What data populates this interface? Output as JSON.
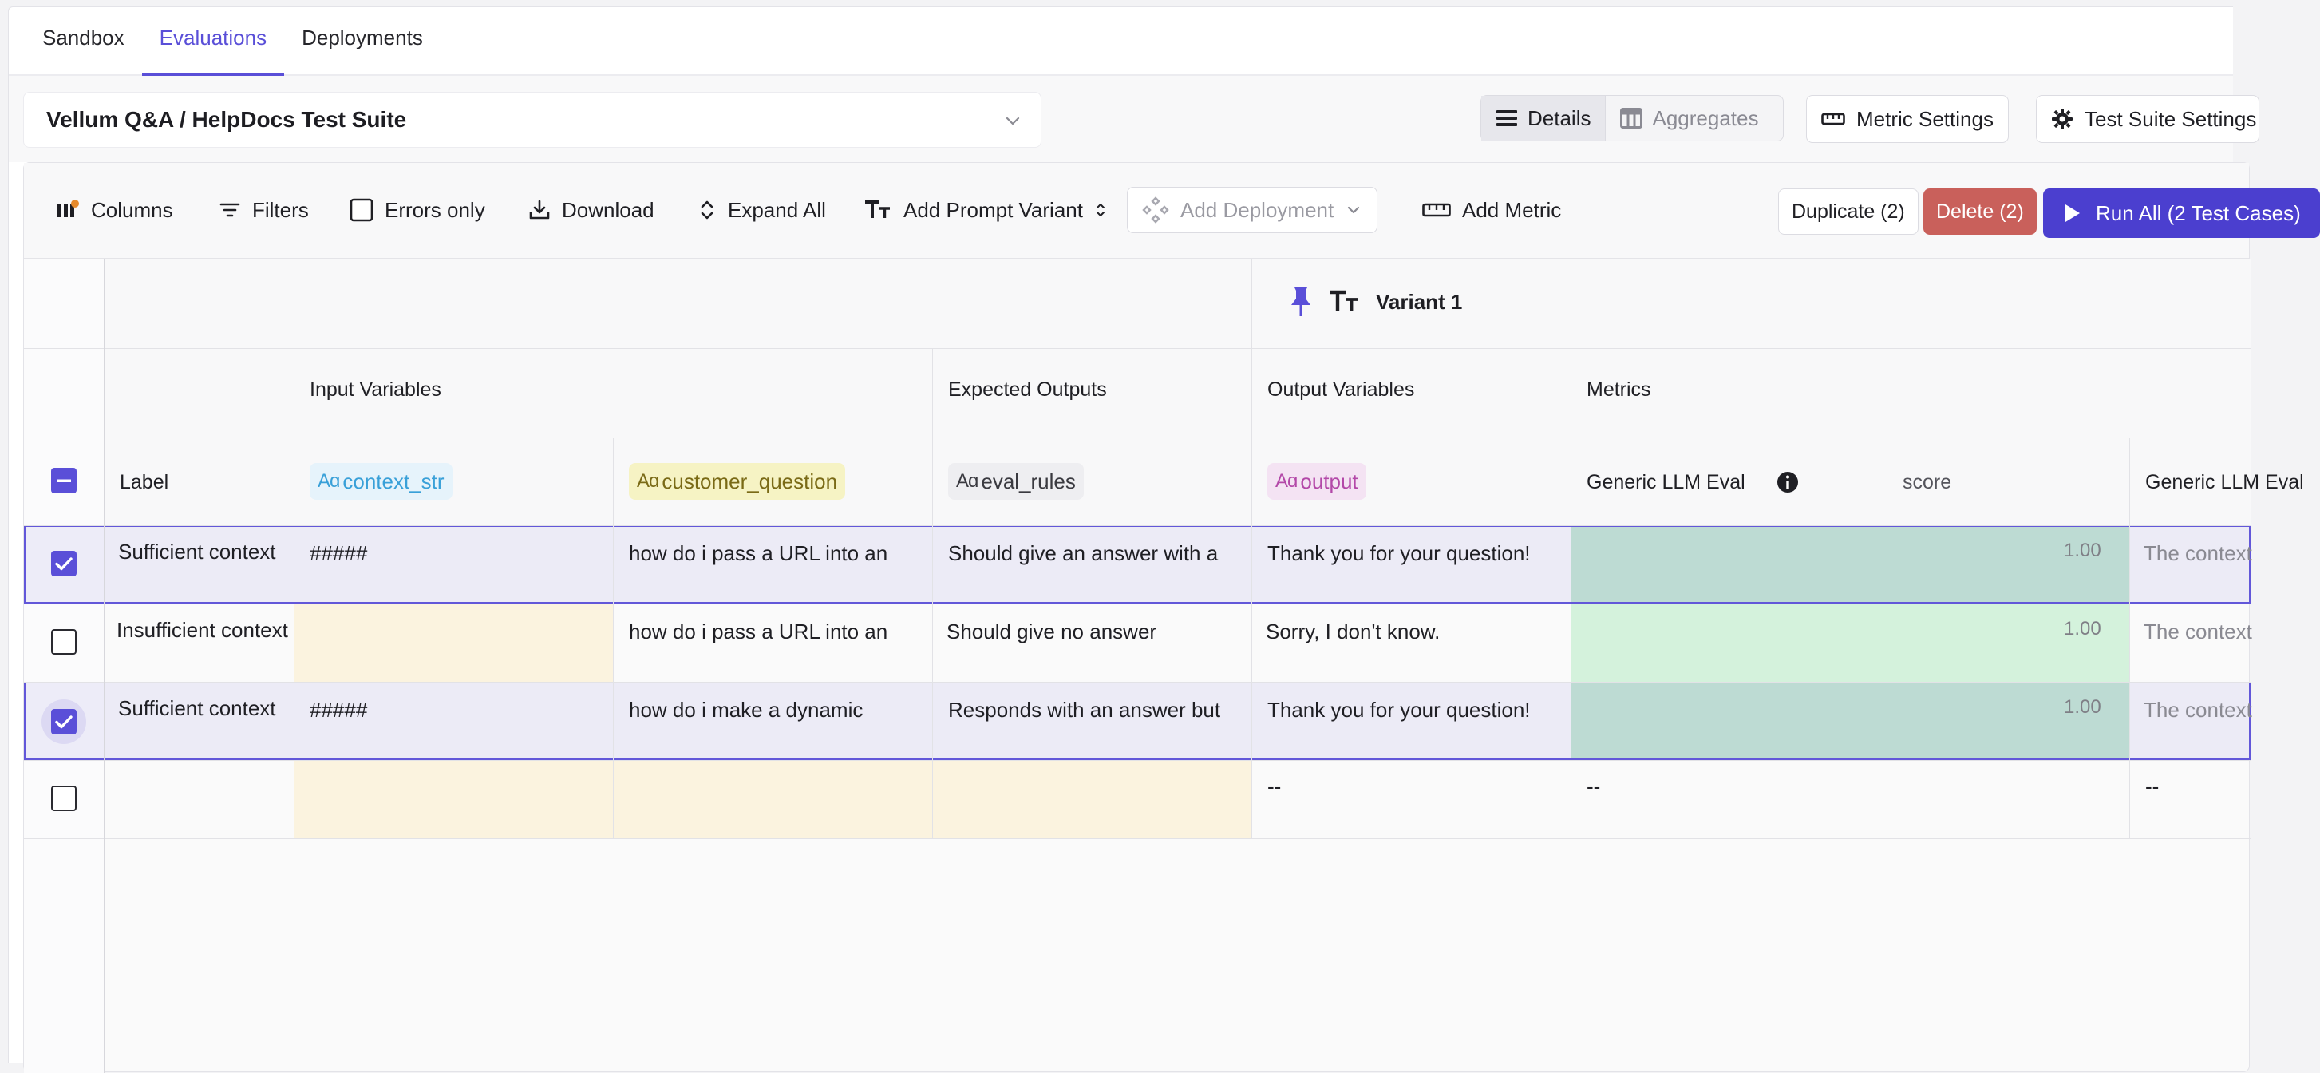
{
  "tabs": [
    "Sandbox",
    "Evaluations",
    "Deployments"
  ],
  "suite": {
    "title": "Vellum Q&A / HelpDocs Test Suite"
  },
  "view_toggle": {
    "details": "Details",
    "aggregates": "Aggregates"
  },
  "header_buttons": {
    "metric_settings": "Metric Settings",
    "test_suite_settings": "Test Suite Settings"
  },
  "toolbar": {
    "columns": "Columns",
    "filters": "Filters",
    "errors_only": "Errors only",
    "download": "Download",
    "expand_all": "Expand All",
    "add_prompt_variant": "Add Prompt Variant",
    "add_deployment": "Add Deployment",
    "add_metric": "Add Metric",
    "duplicate": "Duplicate (2)",
    "delete": "Delete (2)",
    "run_all": "Run All (2 Test Cases)"
  },
  "variant": {
    "label": "Variant 1"
  },
  "groups": {
    "input_variables": "Input Variables",
    "expected_outputs": "Expected Outputs",
    "output_variables": "Output Variables",
    "metrics": "Metrics"
  },
  "columns": {
    "label": "Label",
    "context_str": "context_str",
    "customer_question": "customer_question",
    "eval_rules": "eval_rules",
    "output": "output",
    "metric_name": "Generic LLM Eval",
    "metric_score": "score",
    "metric_name_2": "Generic LLM Eval",
    "type_glyph": "Aɑ"
  },
  "rows": [
    {
      "label": "Sufficient context",
      "context": "#####",
      "question": "how do i pass a URL into an",
      "rules": "Should give an answer with a",
      "output": "Thank you for your question!",
      "score": "1.00",
      "next": "The context",
      "selected": true
    },
    {
      "label": "Insufficient context",
      "context": "",
      "question": "how do i pass a URL into an",
      "rules": "Should give no answer",
      "output": "Sorry, I don't know.",
      "score": "1.00",
      "next": "The context",
      "selected": false
    },
    {
      "label": "Sufficient context",
      "context": "#####",
      "question": "how do i make a dynamic",
      "rules": "Responds with an answer but",
      "output": "Thank you for your question!",
      "score": "1.00",
      "next": "The context",
      "selected": true
    },
    {
      "label": "",
      "context": "",
      "question": "",
      "rules": "",
      "output": "--",
      "score": "--",
      "next": "--",
      "selected": false
    }
  ],
  "colors": {
    "accent": "#5a4fd8",
    "delete": "#c9605b",
    "run": "#4b3fcf",
    "score_green": "#c6e8d3",
    "score_green_light": "#d4f2dc",
    "empty_yellow": "#fbf3df",
    "pill_blue": "#e6f3fb",
    "pill_yellow": "#f6f3c4",
    "pill_gray": "#eeeef1",
    "pill_pink": "#f4e3f3"
  }
}
